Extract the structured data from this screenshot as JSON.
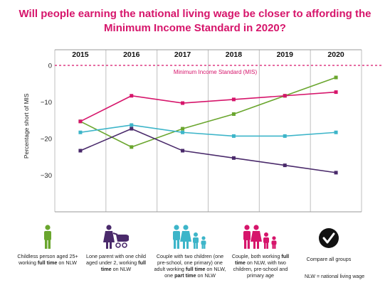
{
  "title_lines": [
    "Will people earning the national living wage be closer to affording the",
    "Minimum Income Standard in 2020?"
  ],
  "colors": {
    "title": "#d6156b",
    "mis_line": "#d6156b",
    "childless": "#6aa62e",
    "lone_parent": "#4a2a6b",
    "couple_one_worker": "#3db5c9",
    "couple_both": "#d6156b"
  },
  "chart_data": {
    "type": "line",
    "x": [
      "2015",
      "2016",
      "2017",
      "2018",
      "2019",
      "2020"
    ],
    "ylabel": "Percentage short of MIS",
    "ylim": [
      -40,
      0
    ],
    "yticks": [
      0,
      -10,
      -20,
      -30
    ],
    "reference_line": {
      "value": 0,
      "label": "Minimum Income Standard (MIS)"
    },
    "series": [
      {
        "key": "childless",
        "color": "#6aa62e",
        "values": [
          -15.3,
          -22.3,
          -17.3,
          -13.3,
          -8.3,
          -3.3
        ]
      },
      {
        "key": "couple_both",
        "color": "#d6156b",
        "values": [
          -15.3,
          -8.3,
          -10.3,
          -9.3,
          -8.3,
          -7.3
        ]
      },
      {
        "key": "couple_one_worker",
        "color": "#3db5c9",
        "values": [
          -18.3,
          -16.3,
          -18.3,
          -19.3,
          -19.3,
          -18.3
        ]
      },
      {
        "key": "lone_parent",
        "color": "#4a2a6b",
        "values": [
          -23.3,
          -17.3,
          -23.3,
          -25.3,
          -27.3,
          -29.3
        ]
      }
    ]
  },
  "legend": [
    {
      "key": "childless",
      "icon": "single-adult-icon",
      "color": "#6aa62e",
      "pre": "Childless person aged 25+ working ",
      "bold": "full time",
      "post": " on NLW"
    },
    {
      "key": "lone_parent",
      "icon": "lone-parent-with-pram-icon",
      "color": "#4a2a6b",
      "pre": "Lone parent with one child aged under 2, working ",
      "bold": "full time",
      "post": " on NLW"
    },
    {
      "key": "couple_one_worker",
      "icon": "couple-two-children-icon",
      "color": "#3db5c9",
      "pre": "Couple with two children (one pre-school, one primary) one adult working ",
      "bold": "full time",
      "post": " on NLW, one ",
      "bold2": "part time",
      "post2": " on NLW"
    },
    {
      "key": "couple_both",
      "icon": "couple-two-children-icon",
      "color": "#d6156b",
      "pre": "Couple, both working ",
      "bold": "full time",
      "post": " on NLW, with two children, pre-school and primary age"
    },
    {
      "key": "all",
      "icon": "checkmark-circle-icon",
      "color": "#111111",
      "pre": "Compare all groups",
      "bold": "",
      "post": ""
    }
  ],
  "footnote": "NLW = national living wage"
}
